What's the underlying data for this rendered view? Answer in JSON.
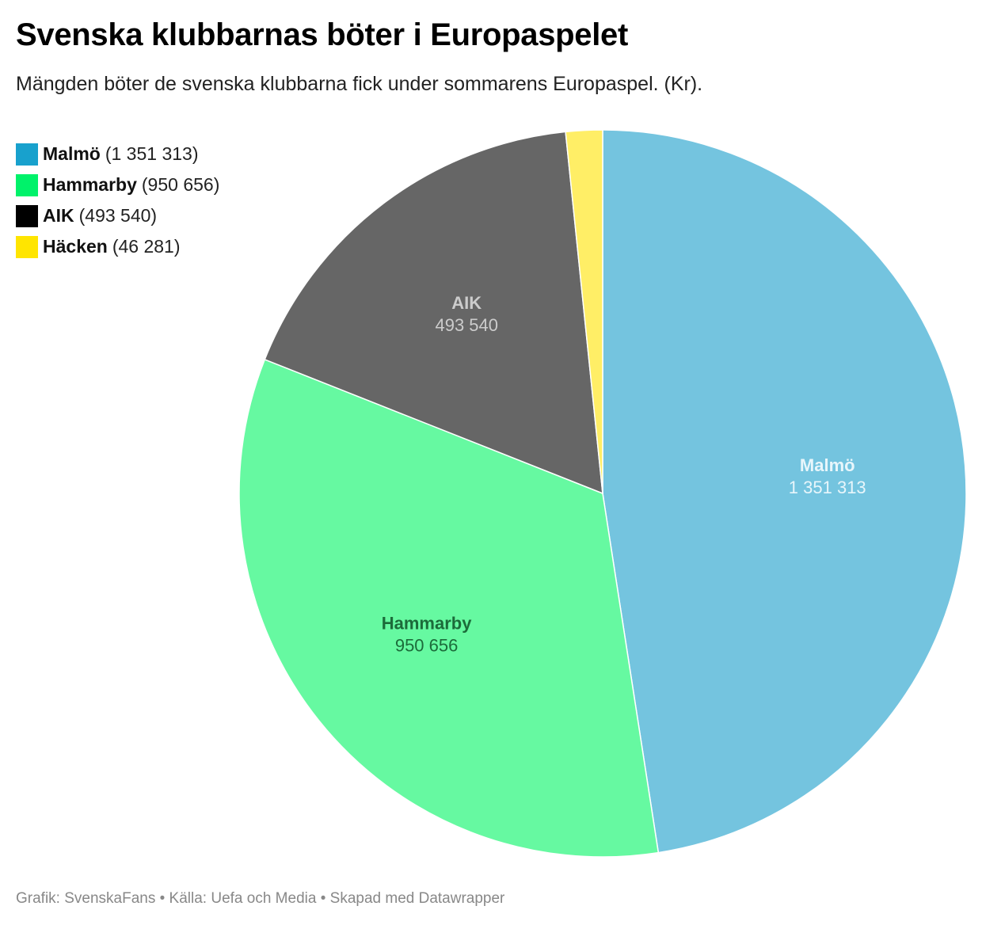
{
  "header": {
    "title": "Svenska klubbarnas böter i Europaspelet",
    "subtitle": "Mängden böter de svenska klubbarna fick under sommarens Europaspel. (Kr)."
  },
  "legend": {
    "items": [
      {
        "name": "Malmö",
        "value": "(1 351 313)",
        "color": "#18a1cd"
      },
      {
        "name": "Hammarby",
        "value": "(950 656)",
        "color": "#00f26a"
      },
      {
        "name": "AIK",
        "value": "(493 540)",
        "color": "#000000"
      },
      {
        "name": "Häcken",
        "value": "(46 281)",
        "color": "#ffe500"
      }
    ]
  },
  "chart_data": {
    "type": "pie",
    "title": "Svenska klubbarnas böter i Europaspelet",
    "subtitle": "Mängden böter de svenska klubbarna fick under sommarens Europaspel. (Kr).",
    "categories": [
      "Malmö",
      "Hammarby",
      "AIK",
      "Häcken"
    ],
    "values": [
      1351313,
      950656,
      493540,
      46281
    ],
    "value_labels": [
      "1 351 313",
      "950 656",
      "493 540",
      "46 281"
    ],
    "slice_colors": [
      "#74c4df",
      "#66f9a1",
      "#666666",
      "#ffee66"
    ],
    "label_colors": [
      "#e8f6fb",
      "#1c6b3a",
      "#cccccc",
      "#5a5200"
    ],
    "show_labels": [
      true,
      true,
      true,
      false
    ],
    "legend_position": "top-left",
    "start_angle": "12 o'clock, clockwise"
  },
  "footer": {
    "credit": "Grafik: SvenskaFans • Källa: Uefa och Media • Skapad med Datawrapper"
  }
}
